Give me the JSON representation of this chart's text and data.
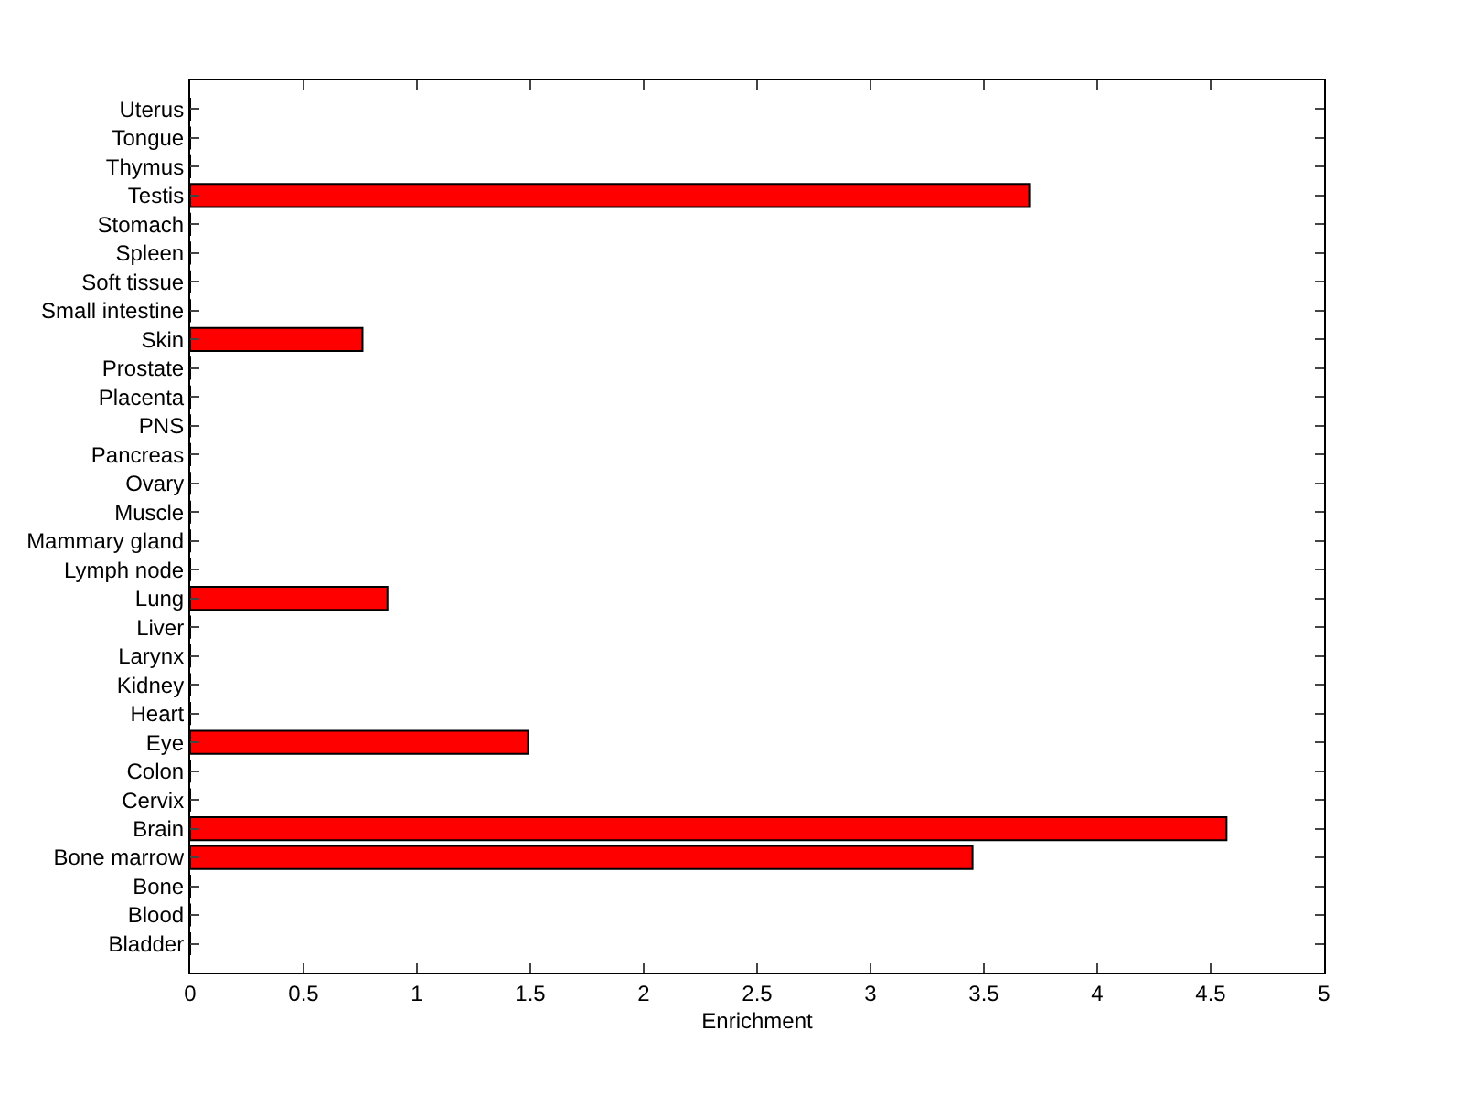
{
  "chart_data": {
    "type": "bar",
    "orientation": "horizontal",
    "xlabel": "Enrichment",
    "categories": [
      "Uterus",
      "Tongue",
      "Thymus",
      "Testis",
      "Stomach",
      "Spleen",
      "Soft tissue",
      "Small intestine",
      "Skin",
      "Prostate",
      "Placenta",
      "PNS",
      "Pancreas",
      "Ovary",
      "Muscle",
      "Mammary gland",
      "Lymph node",
      "Lung",
      "Liver",
      "Larynx",
      "Kidney",
      "Heart",
      "Eye",
      "Colon",
      "Cervix",
      "Brain",
      "Bone marrow",
      "Bone",
      "Blood",
      "Bladder"
    ],
    "values": [
      0,
      0,
      0,
      3.7,
      0,
      0,
      0,
      0,
      0.76,
      0,
      0,
      0,
      0,
      0,
      0,
      0,
      0,
      0.87,
      0,
      0,
      0,
      0,
      1.49,
      0,
      0,
      4.57,
      3.45,
      0,
      0,
      0
    ],
    "color": "#ff0000",
    "xlim": [
      0,
      5
    ],
    "xticks": [
      0,
      0.5,
      1,
      1.5,
      2,
      2.5,
      3,
      3.5,
      4,
      4.5,
      5
    ],
    "grid": false,
    "legend": false
  }
}
